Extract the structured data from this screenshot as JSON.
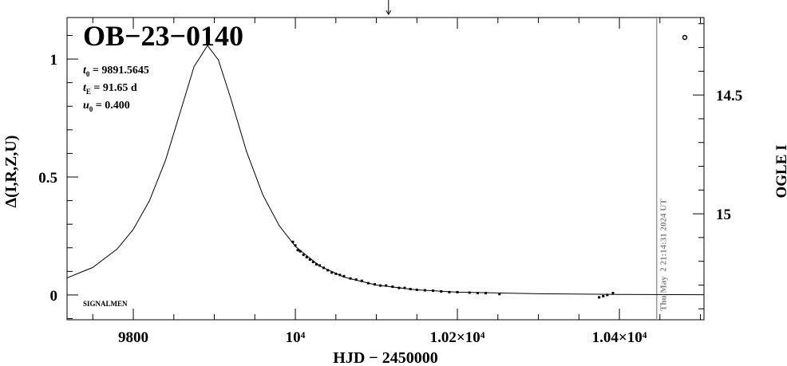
{
  "chart_data": {
    "type": "lightcurve",
    "title": "OB−23−0140",
    "params": [
      {
        "symbol": "t",
        "sub": "0",
        "text": " = 9891.5645"
      },
      {
        "symbol": "t",
        "sub": "E",
        "text": " = 91.65 d"
      },
      {
        "symbol": "u",
        "sub": "0",
        "text": " = 0.400"
      }
    ],
    "footnote": "SIGNALMEN",
    "date_stamp": "Thu May  2 21:14:31 2024 UT",
    "date_line": 10446,
    "arrow_x": 10115,
    "x_label": "HJD − 2450000",
    "y_label": "Δ(I,R,Z,U)",
    "y2_label": "OGLE I",
    "xlim": [
      9718.2,
      10504.4
    ],
    "xticks": [
      9800,
      {
        "value": 10000,
        "label": "10⁴"
      },
      {
        "value": 10200,
        "label": "1.02×10⁴"
      },
      {
        "value": 10400,
        "label": "1.04×10⁴"
      }
    ],
    "xminorticks": [
      9750,
      9850,
      9900,
      9950,
      10050,
      10100,
      10150,
      10250,
      10300,
      10350,
      10450,
      10500
    ],
    "ylim": [
      -0.105,
      1.176
    ],
    "yticks": [
      0,
      0.5,
      1
    ],
    "yminorticks": [
      -0.1,
      0.1,
      0.2,
      0.3,
      0.4,
      0.6,
      0.7,
      0.8,
      0.9,
      1.1
    ],
    "y2lim": [
      15.446,
      14.174
    ],
    "y2ticks": [
      14.5,
      15
    ],
    "y2minorticks": [
      14.2,
      14.3,
      14.4,
      14.6,
      14.7,
      14.8,
      14.9,
      15.1,
      15.2,
      15.3,
      15.4
    ],
    "model": {
      "color": "#000000",
      "x": [
        9718.2,
        9750,
        9780,
        9800,
        9820,
        9840,
        9860,
        9875,
        9891.5645,
        9905,
        9920,
        9940,
        9960,
        9980,
        10000,
        10030,
        10060,
        10100,
        10150,
        10200,
        10300,
        10400,
        10504.4
      ],
      "values": [
        0.0724,
        0.1168,
        0.1949,
        0.2783,
        0.4001,
        0.5733,
        0.7988,
        0.9683,
        1.0572,
        0.9967,
        0.8362,
        0.6055,
        0.4234,
        0.2944,
        0.2059,
        0.123,
        0.0759,
        0.042,
        0.0217,
        0.0121,
        0.0054,
        0.0023,
        0.0011
      ]
    },
    "data": {
      "color": "#000000",
      "x": [
        9997,
        10000,
        10003,
        10006,
        10010,
        10014,
        10018,
        10022,
        10026,
        10030,
        10035,
        10040,
        10045,
        10050,
        10055,
        10060,
        10068,
        10075,
        10082,
        10090,
        10098,
        10105,
        10112,
        10120,
        10128,
        10135,
        10142,
        10150,
        10160,
        10170,
        10180,
        10190,
        10200,
        10215,
        10225,
        10235,
        10252,
        10375,
        10380,
        10385,
        10392
      ],
      "values": [
        0.225,
        0.21,
        0.19,
        0.185,
        0.17,
        0.16,
        0.15,
        0.14,
        0.13,
        0.125,
        0.115,
        0.105,
        0.095,
        0.09,
        0.085,
        0.08,
        0.07,
        0.065,
        0.06,
        0.05,
        0.045,
        0.04,
        0.04,
        0.035,
        0.03,
        0.03,
        0.025,
        0.022,
        0.02,
        0.018,
        0.015,
        0.012,
        0.012,
        0.01,
        0.008,
        0.008,
        0.004,
        -0.01,
        -0.005,
        0.0,
        0.008
      ]
    }
  }
}
